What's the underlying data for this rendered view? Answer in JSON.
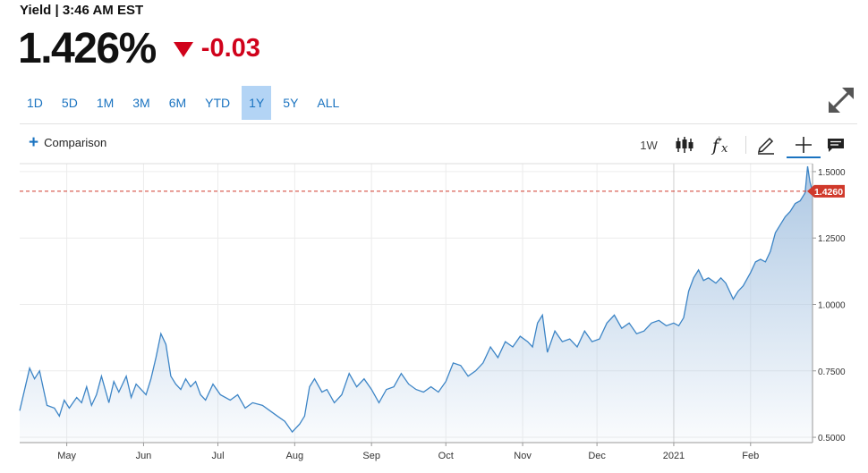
{
  "header": {
    "label": "Yield | 3:46 AM EST",
    "price": "1.426%",
    "change": "-0.03",
    "change_direction": "down",
    "change_color": "#d0021b"
  },
  "range_tabs": {
    "items": [
      "1D",
      "5D",
      "1M",
      "3M",
      "6M",
      "YTD",
      "1Y",
      "5Y",
      "ALL"
    ],
    "active": "1Y"
  },
  "toolbar": {
    "comparison_label": "Comparison",
    "interval_label": "1W",
    "icons": [
      "candlestick-icon",
      "function-icon",
      "draw-pencil-icon",
      "crosshair-icon",
      "comment-icon"
    ]
  },
  "chart_data": {
    "type": "area",
    "title": "",
    "xlabel": "",
    "ylabel": "",
    "x_tick_labels": [
      "May",
      "Jun",
      "Jul",
      "Aug",
      "Sep",
      "Oct",
      "Nov",
      "Dec",
      "2021",
      "Feb"
    ],
    "y_ticks": [
      0.5,
      0.75,
      1.0,
      1.25,
      1.5
    ],
    "y_tick_labels": [
      "0.5000",
      "0.7500",
      "1.0000",
      "1.2500",
      "1.5000"
    ],
    "ylim": [
      0.48,
      1.53
    ],
    "x_range": [
      "2020-04-12",
      "2021-02-26"
    ],
    "current_value": 1.426,
    "current_value_label": "1.4260",
    "line_color": "#3d85c6",
    "marker_color": "#d0392b",
    "grid": true,
    "series": [
      {
        "x": [
          "2020-04-12",
          "2020-04-16",
          "2020-04-18",
          "2020-04-20",
          "2020-04-23",
          "2020-04-26",
          "2020-04-28",
          "2020-04-30",
          "2020-05-02",
          "2020-05-05",
          "2020-05-07",
          "2020-05-09",
          "2020-05-11",
          "2020-05-13",
          "2020-05-15",
          "2020-05-18",
          "2020-05-20",
          "2020-05-22",
          "2020-05-25",
          "2020-05-27",
          "2020-05-29",
          "2020-05-31",
          "2020-06-02",
          "2020-06-04",
          "2020-06-06",
          "2020-06-08",
          "2020-06-10",
          "2020-06-12",
          "2020-06-14",
          "2020-06-16",
          "2020-06-18",
          "2020-06-20",
          "2020-06-22",
          "2020-06-24",
          "2020-06-26",
          "2020-06-29",
          "2020-07-02",
          "2020-07-06",
          "2020-07-09",
          "2020-07-12",
          "2020-07-15",
          "2020-07-19",
          "2020-07-22",
          "2020-07-25",
          "2020-07-28",
          "2020-07-31",
          "2020-08-03",
          "2020-08-05",
          "2020-08-07",
          "2020-08-09",
          "2020-08-12",
          "2020-08-14",
          "2020-08-17",
          "2020-08-20",
          "2020-08-23",
          "2020-08-26",
          "2020-08-29",
          "2020-09-01",
          "2020-09-04",
          "2020-09-07",
          "2020-09-10",
          "2020-09-13",
          "2020-09-16",
          "2020-09-19",
          "2020-09-22",
          "2020-09-25",
          "2020-09-28",
          "2020-10-01",
          "2020-10-04",
          "2020-10-07",
          "2020-10-10",
          "2020-10-13",
          "2020-10-16",
          "2020-10-19",
          "2020-10-22",
          "2020-10-25",
          "2020-10-28",
          "2020-10-31",
          "2020-11-03",
          "2020-11-05",
          "2020-11-07",
          "2020-11-09",
          "2020-11-11",
          "2020-11-14",
          "2020-11-17",
          "2020-11-20",
          "2020-11-23",
          "2020-11-26",
          "2020-11-29",
          "2020-12-02",
          "2020-12-05",
          "2020-12-08",
          "2020-12-11",
          "2020-12-14",
          "2020-12-17",
          "2020-12-20",
          "2020-12-23",
          "2020-12-26",
          "2020-12-29",
          "2021-01-01",
          "2021-01-03",
          "2021-01-05",
          "2021-01-07",
          "2021-01-09",
          "2021-01-11",
          "2021-01-13",
          "2021-01-15",
          "2021-01-18",
          "2021-01-20",
          "2021-01-22",
          "2021-01-25",
          "2021-01-27",
          "2021-01-29",
          "2021-02-01",
          "2021-02-03",
          "2021-02-05",
          "2021-02-07",
          "2021-02-09",
          "2021-02-11",
          "2021-02-13",
          "2021-02-15",
          "2021-02-17",
          "2021-02-19",
          "2021-02-21",
          "2021-02-23",
          "2021-02-24",
          "2021-02-25",
          "2021-02-26"
        ],
        "values": [
          0.6,
          0.76,
          0.72,
          0.75,
          0.62,
          0.61,
          0.58,
          0.64,
          0.61,
          0.65,
          0.63,
          0.69,
          0.62,
          0.66,
          0.73,
          0.63,
          0.71,
          0.67,
          0.73,
          0.65,
          0.7,
          0.68,
          0.66,
          0.72,
          0.8,
          0.89,
          0.85,
          0.73,
          0.7,
          0.68,
          0.72,
          0.69,
          0.71,
          0.66,
          0.64,
          0.7,
          0.66,
          0.64,
          0.66,
          0.61,
          0.63,
          0.62,
          0.6,
          0.58,
          0.56,
          0.52,
          0.55,
          0.58,
          0.69,
          0.72,
          0.67,
          0.68,
          0.63,
          0.66,
          0.74,
          0.69,
          0.72,
          0.68,
          0.63,
          0.68,
          0.69,
          0.74,
          0.7,
          0.68,
          0.67,
          0.69,
          0.67,
          0.71,
          0.78,
          0.77,
          0.73,
          0.75,
          0.78,
          0.84,
          0.8,
          0.86,
          0.84,
          0.88,
          0.86,
          0.84,
          0.93,
          0.96,
          0.82,
          0.9,
          0.86,
          0.87,
          0.84,
          0.9,
          0.86,
          0.87,
          0.93,
          0.96,
          0.91,
          0.93,
          0.89,
          0.9,
          0.93,
          0.94,
          0.92,
          0.93,
          0.92,
          0.95,
          1.05,
          1.1,
          1.13,
          1.09,
          1.1,
          1.08,
          1.1,
          1.08,
          1.02,
          1.05,
          1.07,
          1.12,
          1.16,
          1.17,
          1.16,
          1.2,
          1.27,
          1.3,
          1.33,
          1.35,
          1.38,
          1.39,
          1.42,
          1.52,
          1.46,
          1.426
        ]
      }
    ]
  }
}
